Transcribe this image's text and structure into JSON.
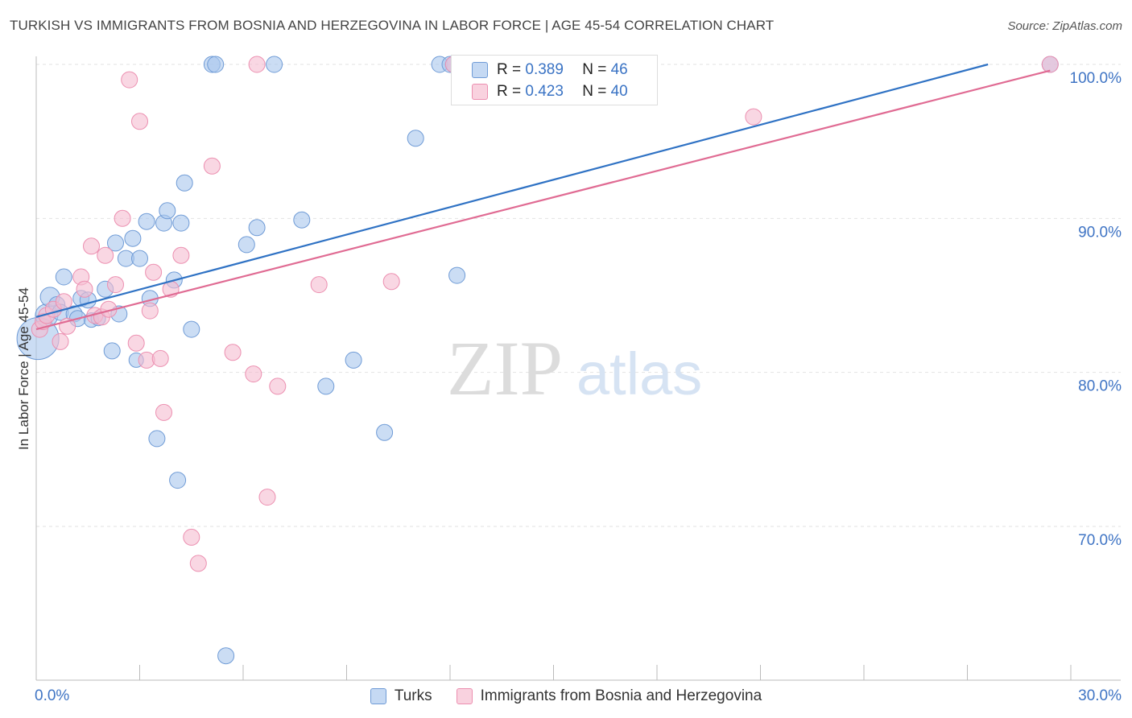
{
  "title": "TURKISH VS IMMIGRANTS FROM BOSNIA AND HERZEGOVINA IN LABOR FORCE | AGE 45-54 CORRELATION CHART",
  "source": "Source: ZipAtlas.com",
  "watermark": {
    "zip": "ZIP",
    "atlas": "atlas"
  },
  "colors": {
    "turks_fill": "#a9c6ec",
    "turks_stroke": "#6f9bd6",
    "turks_line": "#2f72c4",
    "bosnia_fill": "#f5bcd0",
    "bosnia_stroke": "#ec8fb0",
    "bosnia_line": "#e06b93",
    "axis_label": "#3f74c4",
    "grid": "#e2e2e2"
  },
  "stats": [
    {
      "r_label": "R =",
      "r_value": "0.389",
      "n_label": "N =",
      "n_value": "46"
    },
    {
      "r_label": "R =",
      "r_value": "0.423",
      "n_label": "N =",
      "n_value": "40"
    }
  ],
  "chart_data": {
    "type": "scatter",
    "ylabel": "In Labor Force | Age 45-54",
    "xlim": [
      0,
      30
    ],
    "ylim": [
      61,
      101
    ],
    "x_tick_labels": [
      {
        "value": 0,
        "label": "0.0%"
      },
      {
        "value": 30,
        "label": "30.0%"
      }
    ],
    "y_tick_labels": [
      {
        "value": 70,
        "label": "70.0%"
      },
      {
        "value": 80,
        "label": "80.0%"
      },
      {
        "value": 90,
        "label": "90.0%"
      },
      {
        "value": 100,
        "label": "100.0%"
      }
    ],
    "series": [
      {
        "name": "Turks",
        "trend": [
          [
            0,
            83.6
          ],
          [
            27.6,
            100.0
          ]
        ],
        "points": [
          [
            0.05,
            82.2,
            26
          ],
          [
            0.3,
            83.7,
            14
          ],
          [
            0.4,
            84.9,
            12
          ],
          [
            0.6,
            84.4,
            10
          ],
          [
            0.7,
            83.9,
            10
          ],
          [
            0.8,
            86.2,
            10
          ],
          [
            1.1,
            83.8,
            10
          ],
          [
            1.2,
            83.5,
            10
          ],
          [
            1.3,
            84.8,
            10
          ],
          [
            1.5,
            84.7,
            10
          ],
          [
            1.6,
            83.4,
            9
          ],
          [
            1.8,
            83.5,
            9
          ],
          [
            2.0,
            85.4,
            10
          ],
          [
            2.2,
            81.4,
            10
          ],
          [
            2.3,
            88.4,
            10
          ],
          [
            2.4,
            83.8,
            10
          ],
          [
            2.6,
            87.4,
            10
          ],
          [
            2.8,
            88.7,
            10
          ],
          [
            2.9,
            80.8,
            9
          ],
          [
            3.0,
            87.4,
            10
          ],
          [
            3.2,
            89.8,
            10
          ],
          [
            3.3,
            84.8,
            10
          ],
          [
            3.5,
            75.7,
            10
          ],
          [
            3.7,
            89.7,
            10
          ],
          [
            3.8,
            90.5,
            10
          ],
          [
            4.0,
            86.0,
            10
          ],
          [
            4.1,
            73.0,
            10
          ],
          [
            4.2,
            89.7,
            10
          ],
          [
            4.3,
            92.3,
            10
          ],
          [
            4.5,
            82.8,
            10
          ],
          [
            5.1,
            100.0,
            10
          ],
          [
            5.2,
            100.0,
            10
          ],
          [
            5.5,
            61.6,
            10
          ],
          [
            6.1,
            88.3,
            10
          ],
          [
            6.4,
            89.4,
            10
          ],
          [
            6.9,
            100.0,
            10
          ],
          [
            7.7,
            89.9,
            10
          ],
          [
            8.4,
            79.1,
            10
          ],
          [
            9.2,
            80.8,
            10
          ],
          [
            10.1,
            76.1,
            10
          ],
          [
            11.0,
            95.2,
            10
          ],
          [
            11.7,
            100.0,
            10
          ],
          [
            12.0,
            100.0,
            10
          ],
          [
            12.1,
            100.0,
            10
          ],
          [
            12.2,
            86.3,
            10
          ],
          [
            29.4,
            100.0,
            10
          ]
        ]
      },
      {
        "name": "Immigrants from Bosnia and Herzegovina",
        "trend": [
          [
            0,
            82.8
          ],
          [
            29.4,
            99.6
          ]
        ],
        "points": [
          [
            0.1,
            82.8,
            10
          ],
          [
            0.2,
            83.3,
            10
          ],
          [
            0.3,
            83.7,
            10
          ],
          [
            0.5,
            84.1,
            10
          ],
          [
            0.7,
            82.0,
            10
          ],
          [
            0.8,
            84.6,
            10
          ],
          [
            0.9,
            83.0,
            10
          ],
          [
            1.3,
            86.2,
            10
          ],
          [
            1.4,
            85.4,
            10
          ],
          [
            1.6,
            88.2,
            10
          ],
          [
            1.7,
            83.7,
            10
          ],
          [
            1.9,
            83.6,
            10
          ],
          [
            2.0,
            87.6,
            10
          ],
          [
            2.1,
            84.1,
            10
          ],
          [
            2.3,
            85.7,
            10
          ],
          [
            2.5,
            90.0,
            10
          ],
          [
            2.7,
            99.0,
            10
          ],
          [
            2.9,
            81.9,
            10
          ],
          [
            3.0,
            96.3,
            10
          ],
          [
            3.2,
            80.8,
            10
          ],
          [
            3.3,
            84.0,
            10
          ],
          [
            3.4,
            86.5,
            10
          ],
          [
            3.6,
            80.9,
            10
          ],
          [
            3.7,
            77.4,
            10
          ],
          [
            3.9,
            85.4,
            10
          ],
          [
            4.2,
            87.6,
            10
          ],
          [
            4.5,
            69.3,
            10
          ],
          [
            4.7,
            67.6,
            10
          ],
          [
            5.1,
            93.4,
            10
          ],
          [
            5.7,
            81.3,
            10
          ],
          [
            6.3,
            79.9,
            10
          ],
          [
            6.4,
            100.0,
            10
          ],
          [
            6.7,
            71.9,
            10
          ],
          [
            7.0,
            79.1,
            10
          ],
          [
            8.2,
            85.7,
            10
          ],
          [
            10.3,
            85.9,
            10
          ],
          [
            12.1,
            100.0,
            10
          ],
          [
            15.5,
            100.0,
            10
          ],
          [
            20.8,
            96.6,
            10
          ],
          [
            29.4,
            100.0,
            10
          ]
        ]
      }
    ]
  }
}
